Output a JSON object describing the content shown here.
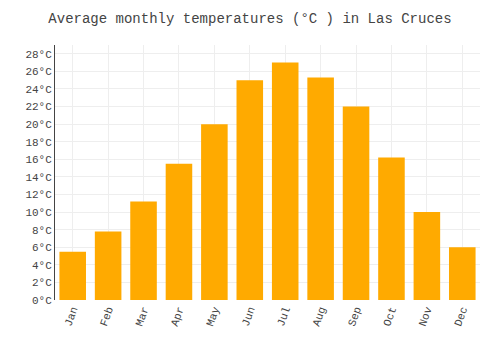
{
  "chart_data": {
    "type": "bar",
    "title": "Average monthly temperatures (°C ) in Las Cruces",
    "categories": [
      "Jan",
      "Feb",
      "Mar",
      "Apr",
      "May",
      "Jun",
      "Jul",
      "Aug",
      "Sep",
      "Oct",
      "Nov",
      "Dec"
    ],
    "values": [
      5.5,
      7.8,
      11.2,
      15.5,
      20.0,
      25.0,
      27.0,
      25.3,
      22.0,
      16.2,
      10.0,
      6.0
    ],
    "color": "#FFAA00",
    "ylim": [
      0,
      29
    ],
    "yticks": [
      {
        "value": 0,
        "label": "0°C"
      },
      {
        "value": 2,
        "label": "2°C"
      },
      {
        "value": 4,
        "label": "4°C"
      },
      {
        "value": 6,
        "label": "6°C"
      },
      {
        "value": 8,
        "label": "8°C"
      },
      {
        "value": 10,
        "label": "10°C"
      },
      {
        "value": 12,
        "label": "12°C"
      },
      {
        "value": 14,
        "label": "14°C"
      },
      {
        "value": 16,
        "label": "16°C"
      },
      {
        "value": 18,
        "label": "18°C"
      },
      {
        "value": 20,
        "label": "20°C"
      },
      {
        "value": 22,
        "label": "22°C"
      },
      {
        "value": 24,
        "label": "24°C"
      },
      {
        "value": 26,
        "label": "26°C"
      },
      {
        "value": 28,
        "label": "28°C"
      }
    ],
    "grid": true
  }
}
